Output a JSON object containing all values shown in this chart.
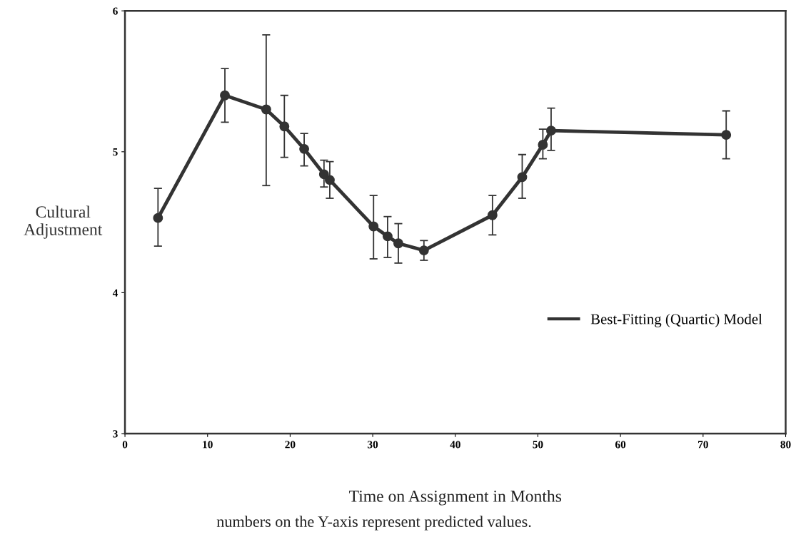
{
  "chart_data": {
    "type": "line",
    "xlabel": "Time on Assignment in Months",
    "ylabel": "Cultural\nAdjustment",
    "annotations": [
      "numbers on the Y-axis represent predicted values."
    ],
    "x": [
      4.0,
      12.1,
      17.1,
      19.3,
      21.7,
      24.1,
      24.8,
      30.1,
      31.8,
      33.1,
      36.2,
      44.5,
      48.1,
      50.6,
      51.6,
      72.8
    ],
    "series": [
      {
        "name": "Best-Fitting (Quartic) Model",
        "color": "#333333",
        "values": [
          4.53,
          5.4,
          5.3,
          5.18,
          5.02,
          4.84,
          4.8,
          4.47,
          4.4,
          4.35,
          4.3,
          4.55,
          4.82,
          5.05,
          5.15,
          5.12
        ],
        "errors": [
          [
            4.33,
            4.74
          ],
          [
            5.21,
            5.59
          ],
          [
            4.76,
            5.83
          ],
          [
            4.96,
            5.4
          ],
          [
            4.9,
            5.13
          ],
          [
            4.75,
            4.94
          ],
          [
            4.67,
            4.93
          ],
          [
            4.24,
            4.69
          ],
          [
            4.25,
            4.54
          ],
          [
            4.21,
            4.49
          ],
          [
            4.23,
            4.37
          ],
          [
            4.41,
            4.69
          ],
          [
            4.67,
            4.98
          ],
          [
            4.95,
            5.16
          ],
          [
            5.01,
            5.31
          ],
          [
            4.95,
            5.29
          ]
        ]
      }
    ],
    "xlim": [
      0,
      80
    ],
    "ylim": [
      3,
      6
    ],
    "xticks": [
      0,
      10,
      20,
      30,
      40,
      50,
      60,
      70,
      80
    ],
    "yticks": [
      3,
      4,
      5,
      6
    ],
    "legend": "bottom right",
    "marker": "circle",
    "line_style": "solid",
    "grid": false
  }
}
